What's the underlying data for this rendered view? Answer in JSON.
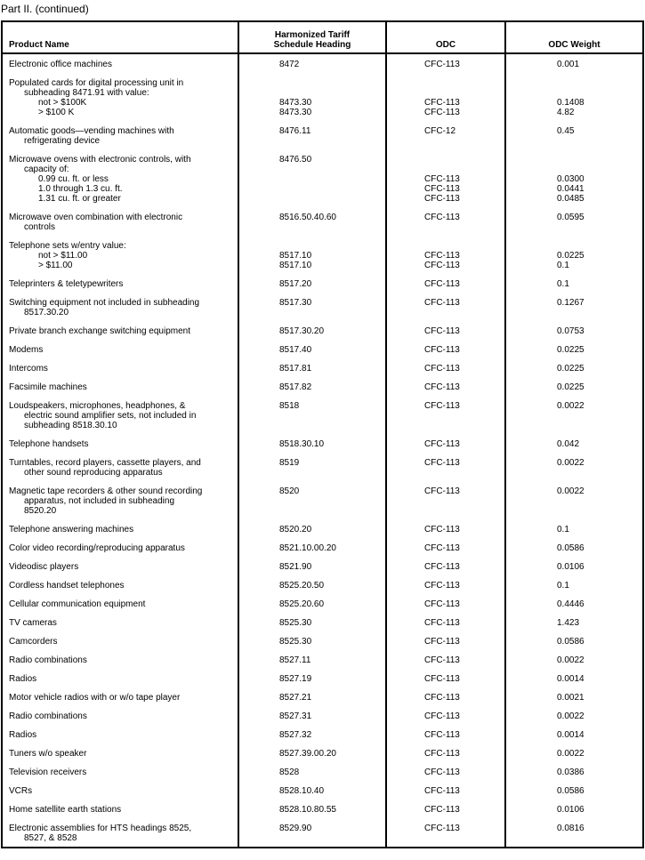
{
  "caption": "Part II. (continued)",
  "headers": {
    "product": "Product Name",
    "hts_line1": "Harmonized Tariff",
    "hts_line2": "Schedule Heading",
    "odc": "ODC",
    "weight": "ODC Weight"
  },
  "rows": [
    {
      "lines": [
        {
          "name": "Electronic office machines",
          "indent": 0,
          "hts": "8472",
          "odc": "CFC-113",
          "weight": "0.001"
        }
      ]
    },
    {
      "lines": [
        {
          "name": "Populated cards for digital processing unit in",
          "indent": 0,
          "hts": "",
          "odc": "",
          "weight": ""
        },
        {
          "name": "subheading 8471.91 with value:",
          "indent": 1,
          "hts": "",
          "odc": "",
          "weight": ""
        },
        {
          "name": "not > $100K",
          "indent": 2,
          "hts": "8473.30",
          "odc": "CFC-113",
          "weight": "0.1408"
        },
        {
          "name": "> $100 K",
          "indent": 2,
          "hts": "8473.30",
          "odc": "CFC-113",
          "weight": "4.82"
        }
      ]
    },
    {
      "lines": [
        {
          "name": "Automatic goods—vending machines with",
          "indent": 0,
          "hts": "8476.11",
          "odc": "CFC-12",
          "weight": "0.45"
        },
        {
          "name": "refrigerating device",
          "indent": 1,
          "hts": "",
          "odc": "",
          "weight": ""
        }
      ]
    },
    {
      "lines": [
        {
          "name": "Microwave ovens with electronic controls, with",
          "indent": 0,
          "hts": "8476.50",
          "odc": "",
          "weight": ""
        },
        {
          "name": "capacity of:",
          "indent": 1,
          "hts": "",
          "odc": "",
          "weight": ""
        },
        {
          "name": "0.99 cu. ft. or less",
          "indent": 2,
          "hts": "",
          "odc": "CFC-113",
          "weight": "0.0300"
        },
        {
          "name": "1.0 through 1.3 cu. ft.",
          "indent": 2,
          "hts": "",
          "odc": "CFC-113",
          "weight": "0.0441"
        },
        {
          "name": "1.31 cu. ft. or greater",
          "indent": 2,
          "hts": "",
          "odc": "CFC-113",
          "weight": "0.0485"
        }
      ]
    },
    {
      "lines": [
        {
          "name": "Microwave oven combination with electronic",
          "indent": 0,
          "hts": "8516.50.40.60",
          "odc": "CFC-113",
          "weight": "0.0595"
        },
        {
          "name": "controls",
          "indent": 1,
          "hts": "",
          "odc": "",
          "weight": ""
        }
      ]
    },
    {
      "lines": [
        {
          "name": "Telephone sets w/entry value:",
          "indent": 0,
          "hts": "",
          "odc": "",
          "weight": ""
        },
        {
          "name": "not > $11.00",
          "indent": 2,
          "hts": "8517.10",
          "odc": "CFC-113",
          "weight": "0.0225"
        },
        {
          "name": "> $11.00",
          "indent": 2,
          "hts": "8517.10",
          "odc": "CFC-113",
          "weight": "0.1"
        }
      ]
    },
    {
      "lines": [
        {
          "name": "Teleprinters & teletypewriters",
          "indent": 0,
          "hts": "8517.20",
          "odc": "CFC-113",
          "weight": "0.1"
        }
      ]
    },
    {
      "lines": [
        {
          "name": "Switching equipment not included in subheading",
          "indent": 0,
          "hts": "8517.30",
          "odc": "CFC-113",
          "weight": "0.1267"
        },
        {
          "name": "8517.30.20",
          "indent": 1,
          "hts": "",
          "odc": "",
          "weight": ""
        }
      ]
    },
    {
      "lines": [
        {
          "name": "Private branch exchange switching equipment",
          "indent": 0,
          "hts": "8517.30.20",
          "odc": "CFC-113",
          "weight": "0.0753"
        }
      ]
    },
    {
      "lines": [
        {
          "name": "Modems",
          "indent": 0,
          "hts": "8517.40",
          "odc": "CFC-113",
          "weight": "0.0225"
        }
      ]
    },
    {
      "lines": [
        {
          "name": "Intercoms",
          "indent": 0,
          "hts": "8517.81",
          "odc": "CFC-113",
          "weight": "0.0225"
        }
      ]
    },
    {
      "lines": [
        {
          "name": "Facsimile machines",
          "indent": 0,
          "hts": "8517.82",
          "odc": "CFC-113",
          "weight": "0.0225"
        }
      ]
    },
    {
      "lines": [
        {
          "name": "Loudspeakers, microphones, headphones, &",
          "indent": 0,
          "hts": "8518",
          "odc": "CFC-113",
          "weight": "0.0022"
        },
        {
          "name": "electric sound amplifier sets, not included in",
          "indent": 1,
          "hts": "",
          "odc": "",
          "weight": ""
        },
        {
          "name": "subheading 8518.30.10",
          "indent": 1,
          "hts": "",
          "odc": "",
          "weight": ""
        }
      ]
    },
    {
      "lines": [
        {
          "name": "Telephone handsets",
          "indent": 0,
          "hts": "8518.30.10",
          "odc": "CFC-113",
          "weight": "0.042"
        }
      ]
    },
    {
      "lines": [
        {
          "name": "Turntables, record players, cassette players, and",
          "indent": 0,
          "hts": "8519",
          "odc": "CFC-113",
          "weight": "0.0022"
        },
        {
          "name": "other sound reproducing apparatus",
          "indent": 1,
          "hts": "",
          "odc": "",
          "weight": ""
        }
      ]
    },
    {
      "lines": [
        {
          "name": "Magnetic tape recorders & other sound recording",
          "indent": 0,
          "hts": "8520",
          "odc": "CFC-113",
          "weight": "0.0022"
        },
        {
          "name": "apparatus, not included in subheading",
          "indent": 1,
          "hts": "",
          "odc": "",
          "weight": ""
        },
        {
          "name": "8520.20",
          "indent": 1,
          "hts": "",
          "odc": "",
          "weight": ""
        }
      ]
    },
    {
      "lines": [
        {
          "name": "Telephone answering machines",
          "indent": 0,
          "hts": "8520.20",
          "odc": "CFC-113",
          "weight": "0.1"
        }
      ]
    },
    {
      "lines": [
        {
          "name": "Color video recording/reproducing apparatus",
          "indent": 0,
          "hts": "8521.10.00.20",
          "odc": "CFC-113",
          "weight": "0.0586"
        }
      ]
    },
    {
      "lines": [
        {
          "name": "Videodisc players",
          "indent": 0,
          "hts": "8521.90",
          "odc": "CFC-113",
          "weight": "0.0106"
        }
      ]
    },
    {
      "lines": [
        {
          "name": "Cordless handset telephones",
          "indent": 0,
          "hts": "8525.20.50",
          "odc": "CFC-113",
          "weight": "0.1"
        }
      ]
    },
    {
      "lines": [
        {
          "name": "Cellular communication equipment",
          "indent": 0,
          "hts": "8525.20.60",
          "odc": "CFC-113",
          "weight": "0.4446"
        }
      ]
    },
    {
      "lines": [
        {
          "name": "TV cameras",
          "indent": 0,
          "hts": "8525.30",
          "odc": "CFC-113",
          "weight": "1.423"
        }
      ]
    },
    {
      "lines": [
        {
          "name": "Camcorders",
          "indent": 0,
          "hts": "8525.30",
          "odc": "CFC-113",
          "weight": "0.0586"
        }
      ]
    },
    {
      "lines": [
        {
          "name": "Radio combinations",
          "indent": 0,
          "hts": "8527.11",
          "odc": "CFC-113",
          "weight": "0.0022"
        }
      ]
    },
    {
      "lines": [
        {
          "name": "Radios",
          "indent": 0,
          "hts": "8527.19",
          "odc": "CFC-113",
          "weight": "0.0014"
        }
      ]
    },
    {
      "lines": [
        {
          "name": "Motor vehicle radios with or w/o tape player",
          "indent": 0,
          "hts": "8527.21",
          "odc": "CFC-113",
          "weight": "0.0021"
        }
      ]
    },
    {
      "lines": [
        {
          "name": "Radio combinations",
          "indent": 0,
          "hts": "8527.31",
          "odc": "CFC-113",
          "weight": "0.0022"
        }
      ]
    },
    {
      "lines": [
        {
          "name": "Radios",
          "indent": 0,
          "hts": "8527.32",
          "odc": "CFC-113",
          "weight": "0.0014"
        }
      ]
    },
    {
      "lines": [
        {
          "name": "Tuners w/o speaker",
          "indent": 0,
          "hts": "8527.39.00.20",
          "odc": "CFC-113",
          "weight": "0.0022"
        }
      ]
    },
    {
      "lines": [
        {
          "name": "Television receivers",
          "indent": 0,
          "hts": "8528",
          "odc": "CFC-113",
          "weight": "0.0386"
        }
      ]
    },
    {
      "lines": [
        {
          "name": "VCRs",
          "indent": 0,
          "hts": "8528.10.40",
          "odc": "CFC-113",
          "weight": "0.0586"
        }
      ]
    },
    {
      "lines": [
        {
          "name": "Home satellite earth stations",
          "indent": 0,
          "hts": "8528.10.80.55",
          "odc": "CFC-113",
          "weight": "0.0106"
        }
      ]
    },
    {
      "lines": [
        {
          "name": "Electronic assemblies for HTS headings 8525,",
          "indent": 0,
          "hts": "8529.90",
          "odc": "CFC-113",
          "weight": "0.0816"
        },
        {
          "name": "8527, & 8528",
          "indent": 1,
          "hts": "",
          "odc": "",
          "weight": ""
        }
      ]
    }
  ]
}
